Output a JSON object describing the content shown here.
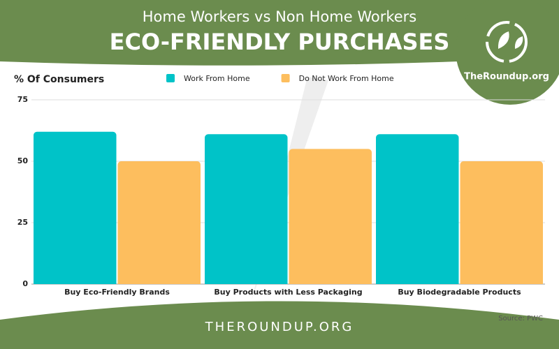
{
  "chart_data": {
    "type": "bar",
    "title": "Home Workers vs Non Home Workers",
    "subtitle": "ECO-FRIENDLY PURCHASES",
    "y_label": "% Of Consumers",
    "categories": [
      "Buy Eco-Friendly Brands",
      "Buy Products with Less Packaging",
      "Buy Biodegradable Products"
    ],
    "series": [
      {
        "name": "Work From Home",
        "color": "#00c3c8",
        "values": [
          62,
          61,
          61
        ]
      },
      {
        "name": "Do Not Work From Home",
        "color": "#fdbe5e",
        "values": [
          50,
          55,
          50
        ]
      }
    ],
    "ylim": [
      0,
      75
    ],
    "yticks": [
      0,
      25,
      50,
      75
    ],
    "grid": true,
    "legend": "top",
    "logo": "TheRoundup.org",
    "footer": "THEROUNDUP.ORG",
    "source": "Source: PWC"
  }
}
